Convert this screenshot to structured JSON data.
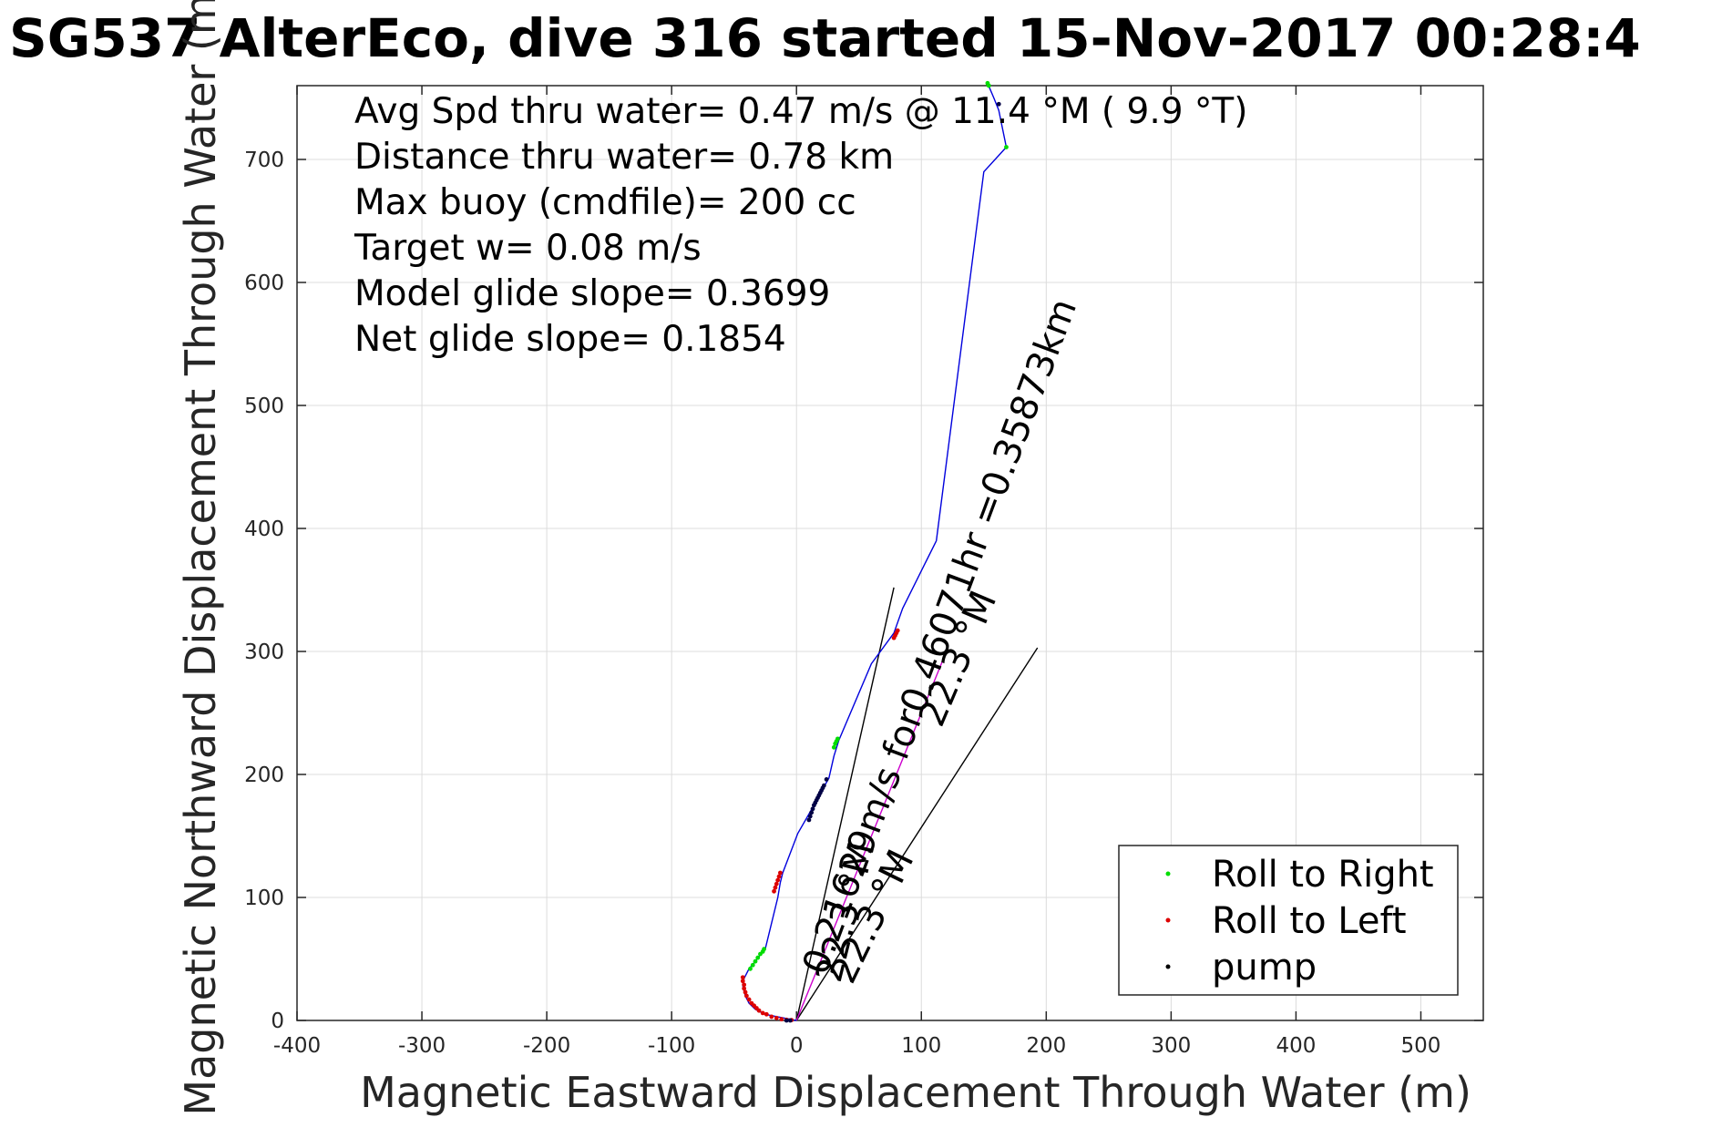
{
  "title": "SG537 AlterEco, dive 316 started 15-Nov-2017 00:28:4",
  "info_lines": [
    "Avg Spd thru water=  0.47 m/s @  11.4 °M (  9.9 °T)",
    "Distance thru water=  0.78 km",
    "Max buoy (cmdfile)= 200 cc",
    "Target w= 0.08 m/s",
    "Model glide slope= 0.3699",
    "Net glide slope= 0.1854"
  ],
  "annotations": {
    "current_text": "0.21629m/s for0.46071hr =0.35873km",
    "heading_text_a": "22.3 °M",
    "heading_text_b": "22.3 °M",
    "heading_text_c": "22.3 °M"
  },
  "colors": {
    "track": "#0000dd",
    "roll_right": "#00dd00",
    "roll_left": "#dd0000",
    "pump": "#000044",
    "annot_line": "#000000"
  },
  "chart_data": {
    "type": "line",
    "title": "SG537 AlterEco, dive 316 started 15-Nov-2017 00:28:4",
    "xlabel": "Magnetic Eastward Displacement Through Water (m)",
    "ylabel": "Magnetic Northward Displacement Through Water (m)",
    "xlim": [
      -400,
      550
    ],
    "ylim": [
      0,
      760
    ],
    "xticks": [
      -400,
      -300,
      -200,
      -100,
      0,
      100,
      200,
      300,
      400,
      500
    ],
    "yticks": [
      0,
      100,
      200,
      300,
      400,
      500,
      600,
      700
    ],
    "xtick_labels": [
      "-400",
      "-300",
      "-200",
      "-100",
      "0",
      "100",
      "200",
      "300",
      "400",
      "500"
    ],
    "ytick_labels": [
      "0",
      "100",
      "200",
      "300",
      "400",
      "500",
      "600",
      "700"
    ],
    "grid": true,
    "legend_position": "bottom-right",
    "series": [
      {
        "name": "track",
        "kind": "line",
        "x": [
          0,
          -5,
          -15,
          -25,
          -33,
          -38,
          -41,
          -43,
          -42,
          -38,
          -33,
          -28,
          -25,
          -15,
          -13,
          -11,
          1,
          14,
          18,
          22,
          26,
          30,
          34,
          60,
          78,
          85,
          112,
          150,
          168,
          162,
          158,
          153
        ],
        "y": [
          0,
          1,
          3,
          5,
          9,
          14,
          20,
          28,
          34,
          42,
          48,
          55,
          58,
          100,
          112,
          120,
          152,
          175,
          182,
          190,
          197,
          215,
          228,
          290,
          315,
          335,
          390,
          690,
          710,
          740,
          750,
          762
        ]
      },
      {
        "name": "Roll to Right",
        "kind": "markers",
        "x": [
          -37,
          -35,
          -33,
          -31,
          -29,
          -27,
          -26,
          30,
          31,
          32,
          33,
          168,
          153,
          154
        ],
        "y": [
          42,
          45,
          48,
          51,
          54,
          56,
          58,
          222,
          225,
          227,
          229,
          710,
          762,
          760
        ]
      },
      {
        "name": "Roll to Left",
        "kind": "markers",
        "x": [
          -43,
          -43,
          -42,
          -42,
          -41,
          -40,
          -38,
          -36,
          -34,
          -32,
          -30,
          -27,
          -24,
          -20,
          -16,
          -12,
          -8,
          -4,
          -18,
          -17,
          -16,
          -15,
          -14,
          -13,
          78,
          79,
          80,
          81
        ],
        "y": [
          35,
          32,
          29,
          26,
          23,
          20,
          17,
          14,
          12,
          10,
          8,
          6,
          5,
          3,
          2,
          1,
          0.5,
          0.3,
          105,
          108,
          111,
          114,
          117,
          120,
          311,
          313,
          315,
          317
        ]
      },
      {
        "name": "pump",
        "kind": "markers",
        "x": [
          10,
          11,
          12,
          13,
          14,
          15,
          16,
          17,
          18,
          19,
          20,
          21,
          22,
          24,
          162,
          -8,
          -5
        ],
        "y": [
          163,
          166,
          169,
          172,
          175,
          177,
          179,
          181,
          183,
          185,
          187,
          189,
          191,
          196,
          745,
          0,
          0
        ]
      }
    ],
    "reference_lines": [
      {
        "name": "steep line",
        "x": [
          0,
          78
        ],
        "y": [
          0,
          352
        ]
      },
      {
        "name": "shallow line",
        "x": [
          0,
          193
        ],
        "y": [
          0,
          303
        ]
      },
      {
        "name": "magenta line",
        "x": [
          0,
          120
        ],
        "y": [
          0,
          300
        ]
      }
    ],
    "legend": [
      "Roll to Right",
      "Roll to Left",
      "pump"
    ]
  }
}
